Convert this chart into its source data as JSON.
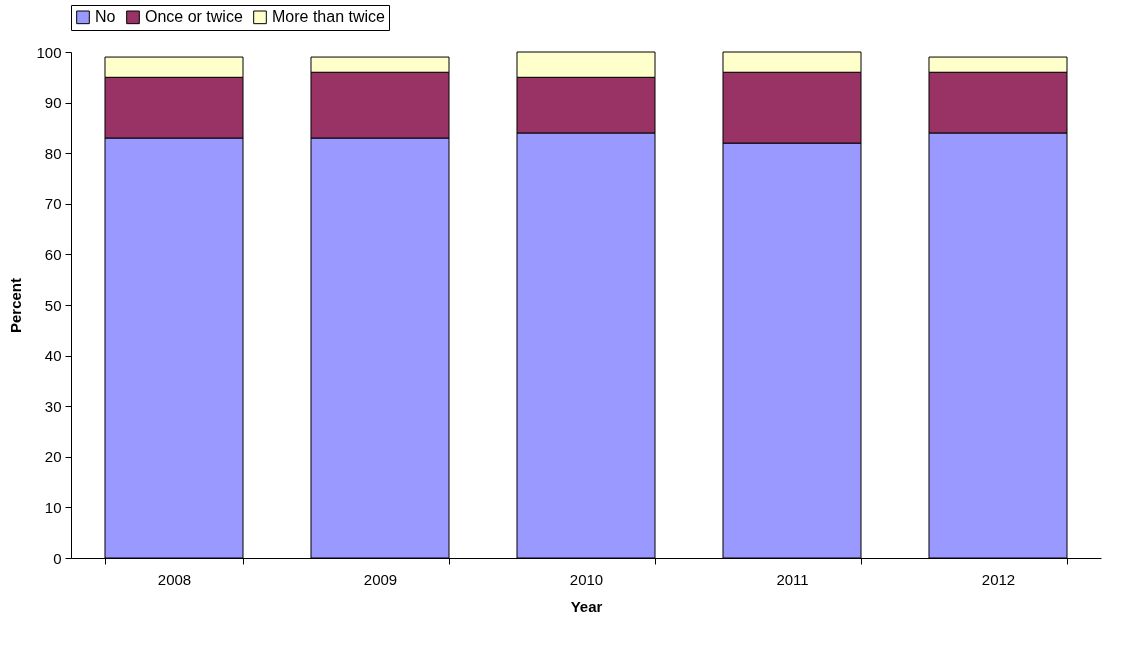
{
  "chart_data": {
    "type": "bar",
    "xlabel": "Year",
    "ylabel": "Percent",
    "categories": [
      "2008",
      "2009",
      "2010",
      "2011",
      "2012"
    ],
    "series": [
      {
        "name": "No",
        "color": "#9999ff",
        "values": [
          83,
          83,
          84,
          82,
          84
        ]
      },
      {
        "name": "Once or twice",
        "color": "#993366",
        "values": [
          12,
          13,
          11,
          14,
          12
        ]
      },
      {
        "name": "More than twice",
        "color": "#ffffcc",
        "values": [
          4,
          3,
          5,
          4,
          3
        ]
      }
    ],
    "stacked": true,
    "ylim": [
      0,
      100
    ],
    "yticks": [
      0,
      10,
      20,
      30,
      40,
      50,
      60,
      70,
      80,
      90,
      100
    ],
    "grid": false,
    "legend": "top"
  }
}
